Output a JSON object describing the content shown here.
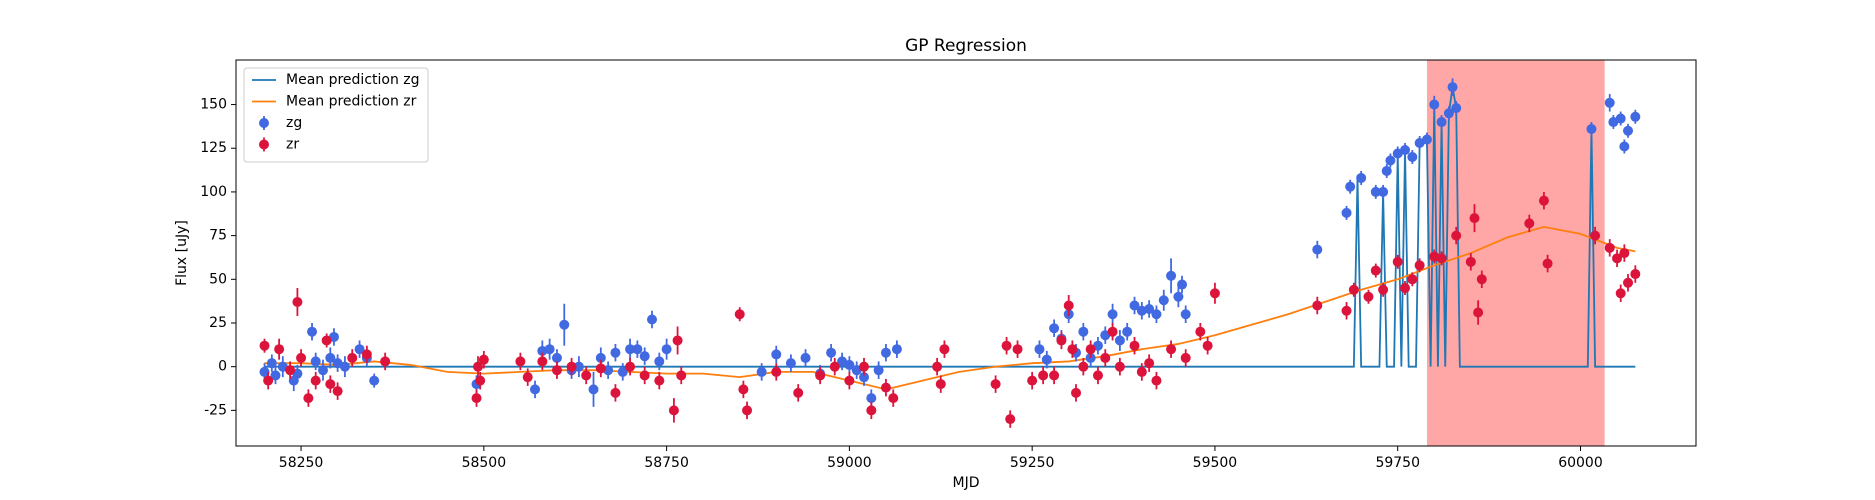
{
  "chart_data": {
    "type": "scatter",
    "title": "GP Regression",
    "x_label": "MJD",
    "y_label": "Flux [uJy]",
    "xlim": [
      58161,
      60158
    ],
    "ylim": [
      -45.4,
      175.5
    ],
    "xticks": [
      58250,
      58500,
      58750,
      59000,
      59250,
      59500,
      59750,
      60000
    ],
    "yticks": [
      -25,
      0,
      25,
      50,
      75,
      100,
      125,
      150
    ],
    "legend": "upper left",
    "shaded_region": {
      "x": [
        59790,
        60033
      ],
      "color": "#ff0000"
    },
    "lines": [
      {
        "name": "Mean prediction zg",
        "color": "#1f77b4",
        "x": [
          58200,
          59690,
          59695,
          59700,
          59725,
          59730,
          59735,
          59745,
          59750,
          59755,
          59760,
          59765,
          59775,
          59780,
          59790,
          59795,
          59800,
          59805,
          59810,
          59815,
          59820,
          59825,
          59830,
          59835,
          60010,
          60015,
          60020,
          60075
        ],
        "values": [
          0,
          0,
          108,
          0,
          0,
          100,
          0,
          0,
          122,
          0,
          124,
          0,
          0,
          128,
          130,
          0,
          150,
          0,
          140,
          0,
          145,
          160,
          148,
          0,
          0,
          136,
          0,
          0
        ]
      },
      {
        "name": "Mean prediction zr",
        "color": "#ff7f0e",
        "x": [
          58200,
          58250,
          58300,
          58350,
          58400,
          58450,
          58500,
          58550,
          58600,
          58650,
          58700,
          58750,
          58800,
          58850,
          58900,
          58950,
          59000,
          59050,
          59100,
          59150,
          59200,
          59250,
          59300,
          59350,
          59400,
          59450,
          59500,
          59550,
          59600,
          59650,
          59700,
          59750,
          59800,
          59850,
          59900,
          59950,
          60000,
          60050,
          60075
        ],
        "values": [
          2,
          2,
          1,
          3,
          1,
          -3,
          -4,
          -3,
          -2,
          -2,
          -3,
          -4,
          -4,
          -6,
          -3,
          -3,
          -8,
          -13,
          -8,
          -3,
          0,
          2,
          3,
          6,
          10,
          13,
          18,
          24,
          30,
          37,
          44,
          50,
          58,
          65,
          74,
          80,
          76,
          68,
          66
        ]
      }
    ],
    "series": [
      {
        "name": "zg",
        "color": "#4169e1",
        "x": [
          58200,
          58210,
          58215,
          58225,
          58240,
          58245,
          58265,
          58270,
          58280,
          58290,
          58295,
          58300,
          58310,
          58330,
          58340,
          58350,
          58490,
          58570,
          58580,
          58590,
          58600,
          58610,
          58620,
          58630,
          58650,
          58660,
          58670,
          58680,
          58690,
          58700,
          58710,
          58720,
          58730,
          58740,
          58750,
          58880,
          58900,
          58920,
          58940,
          58960,
          58975,
          58990,
          59000,
          59010,
          59020,
          59030,
          59040,
          59050,
          59065,
          59260,
          59270,
          59280,
          59290,
          59300,
          59310,
          59320,
          59330,
          59340,
          59350,
          59360,
          59370,
          59380,
          59390,
          59400,
          59410,
          59420,
          59430,
          59440,
          59450,
          59455,
          59460,
          59640,
          59680,
          59685,
          59700,
          59720,
          59730,
          59735,
          59740,
          59750,
          59760,
          59770,
          59780,
          59790,
          59800,
          59810,
          59820,
          59825,
          59830,
          60015,
          60040,
          60045,
          60055,
          60060,
          60065,
          60075
        ],
        "values": [
          -3,
          2,
          -5,
          0,
          -8,
          -4,
          20,
          3,
          -2,
          5,
          17,
          2,
          0,
          10,
          5,
          -8,
          -10,
          -13,
          9,
          10,
          5,
          24,
          -2,
          0,
          -13,
          5,
          -2,
          8,
          -3,
          10,
          10,
          6,
          27,
          3,
          10,
          -3,
          7,
          2,
          5,
          -4,
          8,
          3,
          1,
          -2,
          -6,
          -18,
          -2,
          8,
          10,
          10,
          4,
          22,
          16,
          30,
          8,
          20,
          5,
          12,
          18,
          30,
          15,
          20,
          35,
          32,
          33,
          30,
          38,
          52,
          40,
          47,
          30,
          67,
          88,
          103,
          108,
          100,
          100,
          112,
          118,
          122,
          124,
          120,
          128,
          130,
          150,
          140,
          145,
          160,
          148,
          136,
          151,
          140,
          142,
          126,
          135,
          143
        ],
        "errors": [
          5,
          5,
          5,
          6,
          6,
          5,
          5,
          5,
          6,
          6,
          5,
          5,
          6,
          5,
          5,
          4,
          5,
          5,
          6,
          6,
          5,
          12,
          5,
          6,
          10,
          6,
          5,
          5,
          5,
          6,
          5,
          5,
          5,
          5,
          6,
          5,
          5,
          5,
          5,
          5,
          5,
          5,
          5,
          5,
          5,
          5,
          5,
          5,
          5,
          5,
          5,
          5,
          5,
          5,
          5,
          5,
          5,
          5,
          5,
          6,
          6,
          5,
          5,
          5,
          5,
          5,
          6,
          10,
          6,
          5,
          5,
          5,
          4,
          4,
          4,
          4,
          4,
          4,
          4,
          4,
          4,
          4,
          4,
          4,
          5,
          4,
          4,
          5,
          4,
          4,
          5,
          4,
          4,
          4,
          4,
          4
        ]
      },
      {
        "name": "zr",
        "color": "#dc143c",
        "x": [
          58200,
          58205,
          58220,
          58235,
          58245,
          58250,
          58260,
          58270,
          58285,
          58290,
          58300,
          58320,
          58340,
          58365,
          58490,
          58492,
          58495,
          58500,
          58550,
          58560,
          58580,
          58600,
          58620,
          58640,
          58660,
          58680,
          58700,
          58720,
          58740,
          58760,
          58765,
          58770,
          58850,
          58855,
          58860,
          58900,
          58930,
          58960,
          58980,
          59000,
          59020,
          59030,
          59050,
          59060,
          59120,
          59125,
          59130,
          59200,
          59215,
          59220,
          59230,
          59250,
          59265,
          59280,
          59290,
          59300,
          59305,
          59310,
          59320,
          59330,
          59340,
          59350,
          59360,
          59370,
          59390,
          59400,
          59410,
          59420,
          59440,
          59460,
          59480,
          59490,
          59500,
          59640,
          59680,
          59690,
          59710,
          59720,
          59730,
          59750,
          59760,
          59770,
          59780,
          59800,
          59810,
          59830,
          59850,
          59855,
          59860,
          59865,
          59930,
          59950,
          59955,
          60020,
          60040,
          60050,
          60055,
          60060,
          60065,
          60075
        ],
        "values": [
          12,
          -8,
          10,
          -2,
          37,
          5,
          -18,
          -8,
          15,
          -10,
          -14,
          5,
          7,
          3,
          -18,
          0,
          -8,
          4,
          3,
          -6,
          3,
          -2,
          0,
          -5,
          -1,
          -15,
          0,
          -5,
          -8,
          -25,
          15,
          -5,
          30,
          -13,
          -25,
          -3,
          -15,
          -5,
          0,
          -8,
          0,
          -25,
          -12,
          -18,
          0,
          -10,
          10,
          -10,
          12,
          -30,
          10,
          -8,
          -5,
          -5,
          15,
          35,
          10,
          -15,
          0,
          10,
          -5,
          5,
          20,
          0,
          12,
          -3,
          2,
          -8,
          10,
          5,
          20,
          12,
          42,
          35,
          32,
          44,
          40,
          55,
          44,
          60,
          45,
          50,
          58,
          63,
          62,
          75,
          60,
          85,
          31,
          50,
          82,
          95,
          59,
          75,
          68,
          62,
          42,
          65,
          48,
          53
        ],
        "errors": [
          4,
          5,
          6,
          5,
          8,
          5,
          5,
          5,
          4,
          5,
          5,
          5,
          5,
          5,
          5,
          6,
          5,
          5,
          5,
          5,
          5,
          5,
          5,
          5,
          5,
          5,
          5,
          5,
          5,
          7,
          8,
          5,
          4,
          5,
          5,
          5,
          5,
          5,
          5,
          5,
          5,
          5,
          5,
          5,
          5,
          5,
          5,
          5,
          5,
          5,
          5,
          5,
          5,
          5,
          5,
          6,
          5,
          5,
          5,
          5,
          5,
          5,
          5,
          5,
          5,
          5,
          5,
          5,
          5,
          5,
          5,
          5,
          6,
          5,
          5,
          4,
          4,
          4,
          4,
          4,
          4,
          4,
          4,
          4,
          4,
          5,
          5,
          8,
          7,
          5,
          5,
          5,
          5,
          5,
          5,
          5,
          5,
          5,
          5,
          5
        ]
      }
    ]
  }
}
